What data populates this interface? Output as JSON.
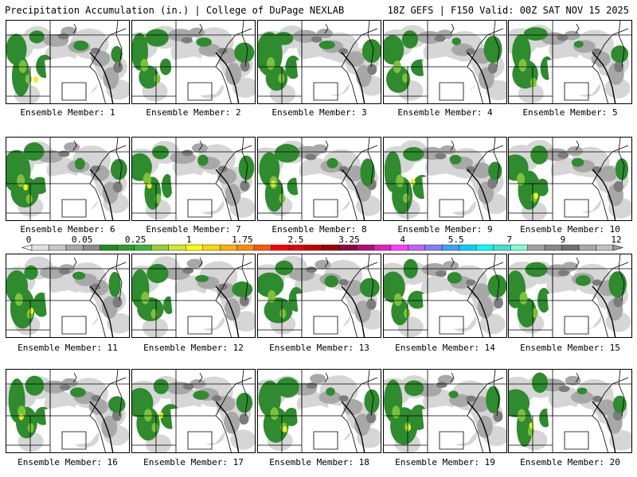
{
  "header": {
    "left": "Precipitation Accumulation (in.) | College of DuPage NEXLAB",
    "right": "18Z GEFS | F150 Valid: 00Z SAT NOV 15 2025"
  },
  "panels": [
    {
      "label": "Ensemble Member: 1"
    },
    {
      "label": "Ensemble Member: 2"
    },
    {
      "label": "Ensemble Member: 3"
    },
    {
      "label": "Ensemble Member: 4"
    },
    {
      "label": "Ensemble Member: 5"
    },
    {
      "label": "Ensemble Member: 6"
    },
    {
      "label": "Ensemble Member: 7"
    },
    {
      "label": "Ensemble Member: 8"
    },
    {
      "label": "Ensemble Member: 9"
    },
    {
      "label": "Ensemble Member: 10"
    },
    {
      "label": "Ensemble Member: 11"
    },
    {
      "label": "Ensemble Member: 12"
    },
    {
      "label": "Ensemble Member: 13"
    },
    {
      "label": "Ensemble Member: 14"
    },
    {
      "label": "Ensemble Member: 15"
    },
    {
      "label": "Ensemble Member: 16"
    },
    {
      "label": "Ensemble Member: 17"
    },
    {
      "label": "Ensemble Member: 18"
    },
    {
      "label": "Ensemble Member: 19"
    },
    {
      "label": "Ensemble Member: 20"
    }
  ],
  "colorbar": {
    "tick_labels": [
      "0",
      "0.05",
      "0.25",
      "1",
      "1.75",
      "2.5",
      "3.25",
      "4",
      "5.5",
      "7",
      "9",
      "12"
    ],
    "colors": [
      "#e0e0e0",
      "#c8c8c8",
      "#a6a6a6",
      "#8c8c8c",
      "#1e8c1e",
      "#2aa02a",
      "#3cb43c",
      "#9acd32",
      "#d4e82a",
      "#ffff00",
      "#ffd700",
      "#ffb000",
      "#ff8c00",
      "#ff5a00",
      "#ff0000",
      "#e00000",
      "#c00000",
      "#a00000",
      "#8b0a3c",
      "#b0106e",
      "#e020c0",
      "#ff40ff",
      "#c060ff",
      "#8080ff",
      "#40a0ff",
      "#00d0ff",
      "#00ffff",
      "#40e0d0",
      "#7fffd4",
      "#a0a0a0",
      "#888888",
      "#707070",
      "#a8a8a8",
      "#c0c0c0"
    ]
  },
  "palette": {
    "light_gray": "#d6d6d6",
    "mid_gray": "#a8a8a8",
    "dark_gray": "#7c7c7c",
    "green": "#2e8b2e",
    "light_green": "#7cc23c",
    "yellow": "#e8f020"
  }
}
